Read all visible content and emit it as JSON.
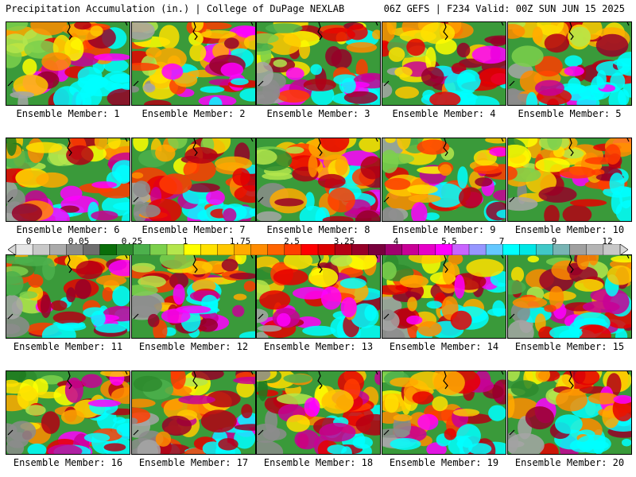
{
  "header": {
    "left": "Precipitation Accumulation (in.) | College of DuPage NEXLAB",
    "right": "06Z GEFS | F234 Valid: 00Z SUN JUN 15 2025"
  },
  "colorbar": {
    "labels": [
      "0",
      "0.05",
      "0.25",
      "1",
      "1.75",
      "2.5",
      "3.25",
      "4",
      "5.5",
      "7",
      "9",
      "12"
    ],
    "colors": [
      "#e6e6e6",
      "#c8c8c8",
      "#aaaaaa",
      "#8c8c8c",
      "#6e6e6e",
      "#0a6e0a",
      "#2e8b2e",
      "#4cb04c",
      "#7cd04c",
      "#b4e64c",
      "#ffff00",
      "#ffe100",
      "#ffc800",
      "#ffaa00",
      "#ff8c00",
      "#ff6400",
      "#ff3c00",
      "#ff0000",
      "#dc0000",
      "#b40014",
      "#960028",
      "#78003c",
      "#a0006e",
      "#c80096",
      "#e600c8",
      "#ff00ff",
      "#c864ff",
      "#9696ff",
      "#64c8ff",
      "#00ffff",
      "#00e6e6",
      "#40c8c8",
      "#78b4b4",
      "#a0a0a0",
      "#b4b4b4",
      "#c8c8c8"
    ]
  },
  "members": [
    {
      "label": "Ensemble Member: 1"
    },
    {
      "label": "Ensemble Member: 2"
    },
    {
      "label": "Ensemble Member: 3"
    },
    {
      "label": "Ensemble Member: 4"
    },
    {
      "label": "Ensemble Member: 5"
    },
    {
      "label": "Ensemble Member: 6"
    },
    {
      "label": "Ensemble Member: 7"
    },
    {
      "label": "Ensemble Member: 8"
    },
    {
      "label": "Ensemble Member: 9"
    },
    {
      "label": "Ensemble Member: 10"
    },
    {
      "label": "Ensemble Member: 11"
    },
    {
      "label": "Ensemble Member: 12"
    },
    {
      "label": "Ensemble Member: 13"
    },
    {
      "label": "Ensemble Member: 14"
    },
    {
      "label": "Ensemble Member: 15"
    },
    {
      "label": "Ensemble Member: 16"
    },
    {
      "label": "Ensemble Member: 17"
    },
    {
      "label": "Ensemble Member: 18"
    },
    {
      "label": "Ensemble Member: 19"
    },
    {
      "label": "Ensemble Member: 20"
    }
  ]
}
